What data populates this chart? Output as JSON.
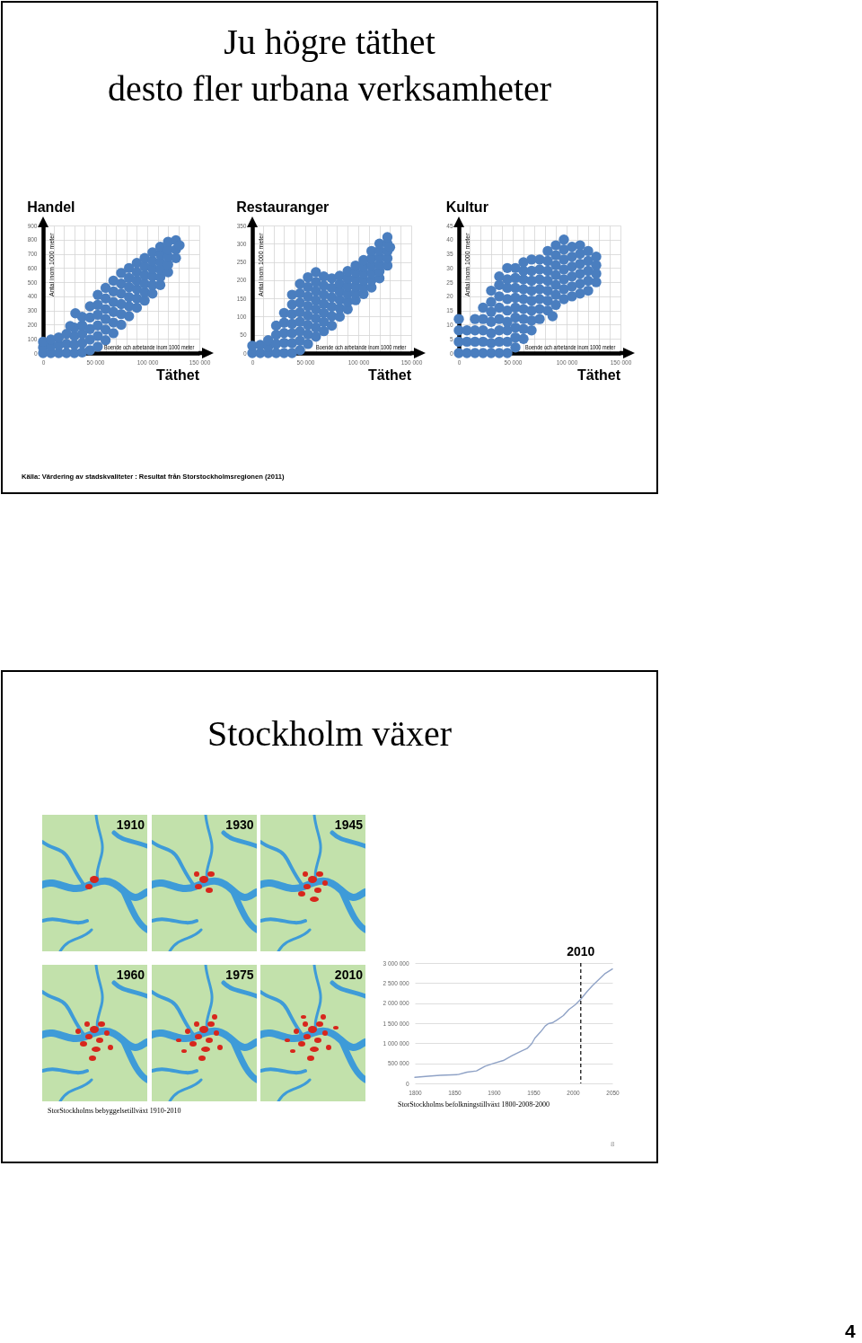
{
  "chart_data": [
    {
      "type": "other",
      "title": "Ju högre täthet\ndesto fler urbana verksamheter",
      "annotations": [
        "Källa: Värdering av stadskvaliteter : Resultat från Storstockholmsregionen (2011)"
      ]
    },
    {
      "type": "scatter",
      "title": "Handel",
      "xlabel": "Boende och arbetande inom 1000 meter",
      "ylabel": "Antal inom 1000 meter",
      "color": "#4a7ebf",
      "marker": "circle",
      "grid": true,
      "x": [
        0,
        0,
        0,
        7500,
        7500,
        7500,
        15000,
        15000,
        15000,
        22500,
        22500,
        22500,
        30000,
        30000,
        30000,
        30000,
        37500,
        37500,
        37500,
        37500,
        37500,
        45000,
        45000,
        45000,
        45000,
        45000,
        52500,
        52500,
        52500,
        52500,
        52500,
        52500,
        60000,
        60000,
        60000,
        60000,
        60000,
        60000,
        67500,
        67500,
        67500,
        67500,
        67500,
        67500,
        75000,
        75000,
        75000,
        75000,
        75000,
        75000,
        82500,
        82500,
        82500,
        82500,
        82500,
        82500,
        90000,
        90000,
        90000,
        90000,
        90000,
        90000,
        97500,
        97500,
        97500,
        97500,
        97500,
        97500,
        105000,
        105000,
        105000,
        105000,
        105000,
        105000,
        112500,
        112500,
        112500,
        112500,
        112500,
        112500,
        120000,
        120000,
        120000,
        120000,
        120000,
        127500,
        127500,
        127500,
        131000,
        31000,
        26000
      ],
      "values": [
        0,
        40,
        80,
        0,
        50,
        95,
        0,
        55,
        110,
        0,
        65,
        135,
        0,
        60,
        120,
        180,
        5,
        70,
        135,
        195,
        255,
        20,
        95,
        170,
        250,
        330,
        45,
        120,
        195,
        270,
        340,
        410,
        90,
        165,
        240,
        310,
        385,
        460,
        140,
        215,
        290,
        360,
        435,
        510,
        200,
        275,
        345,
        420,
        490,
        565,
        260,
        330,
        395,
        465,
        530,
        600,
        320,
        385,
        450,
        510,
        570,
        635,
        370,
        430,
        490,
        550,
        610,
        670,
        420,
        480,
        540,
        595,
        650,
        710,
        480,
        535,
        590,
        640,
        695,
        750,
        570,
        625,
        680,
        730,
        785,
        670,
        730,
        795,
        760,
        280,
        190
      ],
      "xlim": [
        0,
        150000
      ],
      "xticks": [
        0,
        {
          "value": 10000,
          "label": null
        },
        {
          "value": 20000,
          "label": null
        },
        {
          "value": 30000,
          "label": null
        },
        {
          "value": 40000,
          "label": null
        },
        {
          "value": 50000,
          "label": "50 000"
        },
        {
          "value": 60000,
          "label": null
        },
        {
          "value": 70000,
          "label": null
        },
        {
          "value": 80000,
          "label": null
        },
        {
          "value": 90000,
          "label": null
        },
        {
          "value": 100000,
          "label": "100 000"
        },
        {
          "value": 110000,
          "label": null
        },
        {
          "value": 120000,
          "label": null
        },
        {
          "value": 130000,
          "label": null
        },
        {
          "value": 140000,
          "label": null
        },
        {
          "value": 150000,
          "label": "150 000"
        }
      ],
      "ylim": [
        0,
        900
      ],
      "yticks": [
        0,
        100,
        200,
        300,
        400,
        500,
        600,
        700,
        800,
        900
      ],
      "annotations": [
        "Täthet"
      ]
    },
    {
      "type": "scatter",
      "title": "Restauranger",
      "xlabel": "Boende och arbetande inom 1000 meter",
      "ylabel": "Antal inom 1000 meter",
      "color": "#4a7ebf",
      "marker": "circle",
      "grid": true,
      "x": [
        0,
        0,
        7500,
        7500,
        15000,
        15000,
        15000,
        22500,
        22500,
        22500,
        22500,
        30000,
        30000,
        30000,
        30000,
        30000,
        37500,
        37500,
        37500,
        37500,
        37500,
        37500,
        37500,
        45000,
        45000,
        45000,
        45000,
        45000,
        45000,
        45000,
        45000,
        52500,
        52500,
        52500,
        52500,
        52500,
        52500,
        52500,
        52500,
        60000,
        60000,
        60000,
        60000,
        60000,
        60000,
        60000,
        60000,
        67500,
        67500,
        67500,
        67500,
        67500,
        67500,
        67500,
        75000,
        75000,
        75000,
        75000,
        75000,
        75000,
        82500,
        82500,
        82500,
        82500,
        82500,
        82500,
        90000,
        90000,
        90000,
        90000,
        90000,
        90000,
        97500,
        97500,
        97500,
        97500,
        97500,
        97500,
        105000,
        105000,
        105000,
        105000,
        105000,
        105000,
        112500,
        112500,
        112500,
        112500,
        112500,
        112500,
        120000,
        120000,
        120000,
        120000,
        120000,
        120000,
        127500,
        127500,
        127500,
        127500,
        127500,
        130000
      ],
      "values": [
        0,
        20,
        0,
        22,
        0,
        18,
        35,
        0,
        25,
        50,
        75,
        0,
        28,
        55,
        83,
        110,
        0,
        27,
        54,
        80,
        107,
        133,
        160,
        8,
        34,
        60,
        86,
        112,
        138,
        164,
        190,
        25,
        51,
        77,
        103,
        129,
        155,
        181,
        208,
        45,
        70,
        95,
        120,
        145,
        170,
        195,
        222,
        60,
        85,
        110,
        135,
        160,
        185,
        210,
        75,
        101,
        127,
        153,
        179,
        205,
        100,
        123,
        146,
        169,
        190,
        212,
        120,
        141,
        162,
        183,
        204,
        225,
        145,
        164,
        183,
        202,
        221,
        240,
        162,
        180,
        200,
        218,
        237,
        255,
        180,
        200,
        220,
        240,
        260,
        280,
        205,
        224,
        243,
        262,
        281,
        300,
        240,
        260,
        280,
        300,
        318,
        290
      ],
      "xlim": [
        0,
        150000
      ],
      "xticks": [
        0,
        {
          "value": 10000,
          "label": null
        },
        {
          "value": 20000,
          "label": null
        },
        {
          "value": 30000,
          "label": null
        },
        {
          "value": 40000,
          "label": null
        },
        {
          "value": 50000,
          "label": "50 000"
        },
        {
          "value": 60000,
          "label": null
        },
        {
          "value": 70000,
          "label": null
        },
        {
          "value": 80000,
          "label": null
        },
        {
          "value": 90000,
          "label": null
        },
        {
          "value": 100000,
          "label": "100 000"
        },
        {
          "value": 110000,
          "label": null
        },
        {
          "value": 120000,
          "label": null
        },
        {
          "value": 130000,
          "label": null
        },
        {
          "value": 140000,
          "label": null
        },
        {
          "value": 150000,
          "label": "150 000"
        }
      ],
      "ylim": [
        0,
        350
      ],
      "yticks": [
        0,
        50,
        100,
        150,
        200,
        250,
        300,
        350
      ],
      "annotations": [
        "Täthet"
      ]
    },
    {
      "type": "scatter",
      "title": "Kultur",
      "xlabel": "Boende och arbetande inom 1000 meter",
      "ylabel": "Antal inom 1000 meter",
      "color": "#4a7ebf",
      "marker": "circle",
      "grid": true,
      "x": [
        0,
        0,
        0,
        0,
        7500,
        7500,
        7500,
        15000,
        15000,
        15000,
        15000,
        22500,
        22500,
        22500,
        22500,
        22500,
        30000,
        30000,
        30000,
        30000,
        30000,
        30000,
        30000,
        37500,
        37500,
        37500,
        37500,
        37500,
        37500,
        37500,
        37500,
        45000,
        45000,
        45000,
        45000,
        45000,
        45000,
        45000,
        45000,
        45000,
        52500,
        52500,
        52500,
        52500,
        52500,
        52500,
        52500,
        52500,
        52500,
        60000,
        60000,
        60000,
        60000,
        60000,
        60000,
        60000,
        60000,
        60000,
        67500,
        67500,
        67500,
        67500,
        67500,
        67500,
        67500,
        67500,
        75000,
        75000,
        75000,
        75000,
        75000,
        75000,
        75000,
        82500,
        82500,
        82500,
        82500,
        82500,
        82500,
        82500,
        90000,
        90000,
        90000,
        90000,
        90000,
        90000,
        90000,
        97500,
        97500,
        97500,
        97500,
        97500,
        97500,
        97500,
        105000,
        105000,
        105000,
        105000,
        105000,
        105000,
        112500,
        112500,
        112500,
        112500,
        112500,
        112500,
        120000,
        120000,
        120000,
        120000,
        120000,
        127500,
        127500,
        127500,
        127500,
        87000
      ],
      "values": [
        0,
        4,
        8,
        12,
        0,
        4,
        8,
        0,
        4,
        8,
        12,
        0,
        4,
        8,
        12,
        16,
        0,
        3.5,
        7,
        11,
        14.5,
        18,
        22,
        0,
        4,
        8,
        12,
        16,
        20,
        24,
        27,
        0,
        4,
        8,
        11,
        15,
        19,
        23,
        26,
        30,
        2,
        5.5,
        9,
        12.5,
        16,
        19.5,
        23,
        26.5,
        30,
        5,
        8.5,
        12,
        15.5,
        19,
        22.5,
        26,
        29,
        32,
        8,
        11.5,
        15,
        18.5,
        22,
        25.5,
        29,
        33,
        12,
        15.5,
        19,
        22.5,
        26,
        29.5,
        33,
        15,
        18.5,
        22,
        25.5,
        29,
        32.5,
        36,
        17,
        20.5,
        24,
        27.5,
        31,
        34.5,
        38,
        19,
        22.5,
        26,
        29.5,
        33,
        36.5,
        40,
        20,
        23.5,
        27,
        30.5,
        34,
        37.5,
        21,
        24.5,
        28,
        31.5,
        35,
        38,
        22,
        25.5,
        29,
        32.5,
        36,
        25,
        28,
        31,
        34,
        13
      ],
      "xlim": [
        0,
        150000
      ],
      "xticks": [
        0,
        {
          "value": 10000,
          "label": null
        },
        {
          "value": 20000,
          "label": null
        },
        {
          "value": 30000,
          "label": null
        },
        {
          "value": 40000,
          "label": null
        },
        {
          "value": 50000,
          "label": "50 000"
        },
        {
          "value": 60000,
          "label": null
        },
        {
          "value": 70000,
          "label": null
        },
        {
          "value": 80000,
          "label": null
        },
        {
          "value": 90000,
          "label": null
        },
        {
          "value": 100000,
          "label": "100 000"
        },
        {
          "value": 110000,
          "label": null
        },
        {
          "value": 120000,
          "label": null
        },
        {
          "value": 130000,
          "label": null
        },
        {
          "value": 140000,
          "label": null
        },
        {
          "value": 150000,
          "label": "150 000"
        }
      ],
      "ylim": [
        0,
        45
      ],
      "yticks": [
        0,
        5,
        10,
        15,
        20,
        25,
        30,
        35,
        40,
        45
      ],
      "annotations": [
        "Täthet"
      ]
    },
    {
      "type": "other",
      "title": "Stockholm växer",
      "annotations": [
        "8"
      ]
    },
    {
      "type": "other",
      "categories": [
        "1910",
        "1930",
        "1945",
        "1960",
        "1975",
        "2010"
      ],
      "annotations": [
        "StorStockholms bebyggelsetillväxt 1910-2010"
      ]
    },
    {
      "type": "line",
      "color": "#8fa2c6",
      "grid": "y",
      "x": [
        1800,
        1817,
        1832,
        1855,
        1866,
        1878,
        1889,
        1900,
        1912,
        1923,
        1934,
        1942,
        1948,
        1952,
        1959,
        1965,
        1969,
        1974,
        1980,
        1988,
        1995,
        2003,
        2010,
        2018,
        2025,
        2033,
        2041,
        2050
      ],
      "values": [
        150000,
        180000,
        200000,
        220000,
        280000,
        310000,
        430000,
        500000,
        570000,
        690000,
        800000,
        870000,
        990000,
        1130000,
        1280000,
        1430000,
        1490000,
        1510000,
        1580000,
        1690000,
        1840000,
        1960000,
        2100000,
        2290000,
        2440000,
        2590000,
        2740000,
        2850000
      ],
      "xlim": [
        1800,
        2050
      ],
      "xticks": [
        1800,
        1850,
        1900,
        1950,
        2000,
        2050
      ],
      "ylim": [
        0,
        3000000
      ],
      "yticks": [
        0,
        {
          "value": 500000,
          "label": "500 000"
        },
        {
          "value": 1000000,
          "label": "1 000 000"
        },
        {
          "value": 1500000,
          "label": "1 500 000"
        },
        {
          "value": 2000000,
          "label": "2 000 000"
        },
        {
          "value": 2500000,
          "label": "2 500 000"
        },
        {
          "value": 3000000,
          "label": "3 000 000"
        }
      ],
      "ref_lines": [
        {
          "axis": "x",
          "value": 2010,
          "label": "2010",
          "color": "#000000",
          "line_style": "dashed"
        }
      ],
      "annotations": [
        "StorStockholms befolkningstillväxt 1800-2008-2000"
      ]
    },
    {
      "type": "other",
      "annotations": [
        "4"
      ]
    }
  ]
}
